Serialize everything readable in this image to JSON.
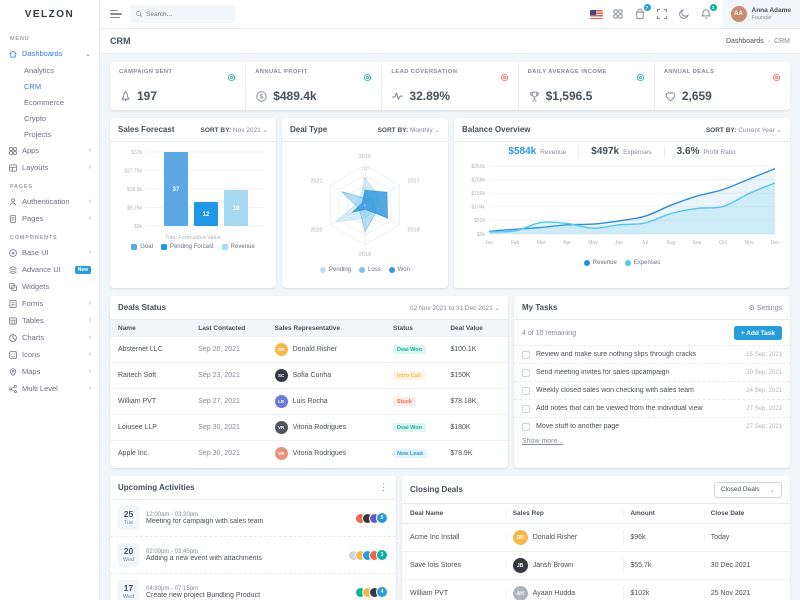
{
  "brand": {
    "logo_text": "VELZON"
  },
  "topbar": {
    "search_placeholder": "Search...",
    "cart_badge": "7",
    "bell_badge": "3",
    "user": {
      "name": "Anna Adame",
      "role": "Founder",
      "initials": "AA"
    }
  },
  "page": {
    "title": "CRM",
    "breadcrumb": [
      "Dashboards",
      "CRM"
    ]
  },
  "sidebar": {
    "sections": [
      {
        "label": "MENU",
        "items": [
          {
            "label": "Dashboards",
            "icon": "dashboard-icon",
            "active": true,
            "chevron": "down"
          },
          {
            "label": "Analytics",
            "sub": true
          },
          {
            "label": "CRM",
            "sub": true,
            "active": true
          },
          {
            "label": "Ecommerce",
            "sub": true
          },
          {
            "label": "Crypto",
            "sub": true
          },
          {
            "label": "Projects",
            "sub": true
          },
          {
            "label": "Apps",
            "icon": "apps-icon",
            "chevron": "right"
          },
          {
            "label": "Layouts",
            "icon": "layouts-icon",
            "chevron": "right"
          }
        ]
      },
      {
        "label": "PAGES",
        "items": [
          {
            "label": "Authentication",
            "icon": "user-icon",
            "chevron": "right"
          },
          {
            "label": "Pages",
            "icon": "pages-icon",
            "chevron": "right"
          }
        ]
      },
      {
        "label": "COMPONENTS",
        "items": [
          {
            "label": "Base UI",
            "icon": "base-ui-icon",
            "chevron": "right"
          },
          {
            "label": "Advance UI",
            "icon": "advance-ui-icon",
            "badge": "New"
          },
          {
            "label": "Widgets",
            "icon": "widgets-icon"
          },
          {
            "label": "Forms",
            "icon": "forms-icon",
            "chevron": "right"
          },
          {
            "label": "Tables",
            "icon": "tables-icon",
            "chevron": "right"
          },
          {
            "label": "Charts",
            "icon": "charts-icon",
            "chevron": "right"
          },
          {
            "label": "Icons",
            "icon": "icons-icon",
            "chevron": "right"
          },
          {
            "label": "Maps",
            "icon": "maps-icon",
            "chevron": "right"
          },
          {
            "label": "Multi Level",
            "icon": "multi-level-icon",
            "chevron": "right"
          }
        ]
      }
    ]
  },
  "kpis": [
    {
      "label": "CAMPAIGN SENT",
      "value": "197",
      "icon": "rocket-icon",
      "trend_color": "#0ab39c"
    },
    {
      "label": "ANNUAL PROFIT",
      "value": "$489.4k",
      "icon": "dollar-circle-icon",
      "trend_color": "#0ab39c"
    },
    {
      "label": "LEAD COVERSATION",
      "value": "32.89%",
      "icon": "pulse-icon",
      "trend_color": "#f06548"
    },
    {
      "label": "DAILY AVERAGE INCOME",
      "value": "$1,596.5",
      "icon": "trophy-icon",
      "trend_color": "#0ab39c"
    },
    {
      "label": "ANNUAL DEALS",
      "value": "2,659",
      "icon": "deals-icon",
      "trend_color": "#f06548"
    }
  ],
  "sales_forecast": {
    "title": "Sales Forecast",
    "sort_label": "SORT BY:",
    "sort_value": "Nov 2021",
    "chart": {
      "type": "bar",
      "categories": [
        "Goal",
        "Pending Forcast",
        "Revenue"
      ],
      "values": [
        37,
        12,
        18
      ],
      "bar_labels": [
        "37",
        "12",
        "18"
      ],
      "colors": [
        "#5ca8e3",
        "#1f97e6",
        "#a9d8f3"
      ],
      "yticks": [
        0,
        9.25,
        18.5,
        27.75,
        37
      ],
      "ytick_labels": [
        "$0k",
        "$9.25k",
        "$18.5k",
        "$27.75k",
        "$37k"
      ],
      "ylim": [
        0,
        37
      ],
      "xlabel": "Total Forecasted Value",
      "legend": [
        "Goal",
        "Pending Forcast",
        "Revenue"
      ]
    }
  },
  "deal_type": {
    "title": "Deal Type",
    "sort_label": "SORT BY:",
    "sort_value": "Monthly",
    "chart": {
      "type": "radar",
      "categories": [
        "2016",
        "2017",
        "2018",
        "2019",
        "2020",
        "2021"
      ],
      "rmax": 120,
      "rticks": [
        0,
        60,
        90,
        120
      ],
      "series": [
        {
          "name": "Pending",
          "color": "#b9dff5",
          "opacity": 0.55,
          "values": [
            80,
            50,
            30,
            40,
            100,
            20
          ]
        },
        {
          "name": "Loss",
          "color": "#7cc4ee",
          "opacity": 0.55,
          "values": [
            20,
            30,
            40,
            80,
            20,
            80
          ]
        },
        {
          "name": "Won",
          "color": "#3599dc",
          "opacity": 0.85,
          "values": [
            44,
            76,
            78,
            13,
            43,
            10
          ]
        }
      ]
    }
  },
  "balance_overview": {
    "title": "Balance Overview",
    "sort_label": "SORT BY:",
    "sort_value": "Current Year",
    "stats": [
      {
        "value": "$584k",
        "label": "Revenue",
        "color": "#2c9ae3"
      },
      {
        "value": "$497k",
        "label": "Expenses",
        "color": "#495057"
      },
      {
        "value": "3.6%",
        "label": "Profit Ratio",
        "color": "#495057"
      }
    ],
    "chart": {
      "type": "area",
      "x": [
        "Jan",
        "Feb",
        "Mar",
        "Apr",
        "May",
        "Jun",
        "Jul",
        "Aug",
        "Sep",
        "Oct",
        "Nov",
        "Dec"
      ],
      "yticks": [
        0,
        52,
        104,
        156,
        208,
        260
      ],
      "ytick_labels": [
        "$0k",
        "$52k",
        "$104k",
        "$156k",
        "$208k",
        "$260k"
      ],
      "ylim": [
        0,
        260
      ],
      "series": [
        {
          "name": "Revenue",
          "color": "#2c8fd8",
          "fill": "rgba(44,143,216,0.10)",
          "values": [
            10,
            18,
            25,
            35,
            38,
            50,
            68,
            110,
            145,
            170,
            210,
            250
          ]
        },
        {
          "name": "Expenses",
          "color": "#55c6ee",
          "fill": "rgba(84,198,238,0.18)",
          "values": [
            8,
            12,
            44,
            40,
            22,
            35,
            42,
            78,
            98,
            105,
            155,
            195
          ]
        }
      ]
    }
  },
  "deals_status": {
    "title": "Deals Status",
    "date_range": "02 Nov 2021 to 31 Dec 2021",
    "columns": [
      "Name",
      "Last Contacted",
      "Sales Representative",
      "Status",
      "Deal Value"
    ],
    "rows": [
      {
        "name": "Absternet LLC",
        "last_contacted": "Sep 20, 2021",
        "rep": "Donald Risher",
        "rep_initials": "DR",
        "rep_bg": "#f7b84b",
        "status": "Deal Won",
        "status_type": "success",
        "value": "$100.1K"
      },
      {
        "name": "Raitech Soft",
        "last_contacted": "Sep 23, 2021",
        "rep": "Sofia Cunha",
        "rep_initials": "SC",
        "rep_bg": "#343a40",
        "status": "Intro Call",
        "status_type": "warning",
        "value": "$150K"
      },
      {
        "name": "William PVT",
        "last_contacted": "Sep 27, 2021",
        "rep": "Luis Rocha",
        "rep_initials": "LR",
        "rep_bg": "#6c7bd8",
        "status": "Stuck",
        "status_type": "danger",
        "value": "$78.18K"
      },
      {
        "name": "Loiusee LLP",
        "last_contacted": "Sep 30, 2021",
        "rep": "Vitoria Rodrigues",
        "rep_initials": "VR",
        "rep_bg": "#50565e",
        "status": "Deal Won",
        "status_type": "success",
        "value": "$180K"
      },
      {
        "name": "Apple Inc.",
        "last_contacted": "Sep 30, 2021",
        "rep": "Vitoria Rodrigues",
        "rep_initials": "VR",
        "rep_bg": "#e8927c",
        "status": "New Lead",
        "status_type": "info",
        "value": "$78.9K"
      }
    ]
  },
  "my_tasks": {
    "title": "My Tasks",
    "settings_label": "Settings",
    "remaining": "4 of 10 remaining",
    "add_task_label": "+ Add Task",
    "show_more": "Show more...",
    "tasks": [
      {
        "text": "Review and make sure nothing slips through cracks",
        "date": "15 Sep, 2021"
      },
      {
        "text": "Send meeting invites for sales upcampaign",
        "date": "20 Sep, 2021"
      },
      {
        "text": "Weekly closed sales won checking with sales team",
        "date": "24 Sep, 2021"
      },
      {
        "text": "Add notes that can be viewed from the individual view",
        "date": "27 Sep, 2021"
      },
      {
        "text": "Move stuff to another page",
        "date": "27 Sep, 2021"
      }
    ]
  },
  "upcoming_activities": {
    "title": "Upcoming Activities",
    "items": [
      {
        "day": "25",
        "weekday": "Tue",
        "time": "12:00am - 03:30pm",
        "text": "Meeting for campaign with sales team",
        "avatars": [
          "#f06548",
          "#343a40",
          "#6559cc"
        ],
        "extra": "5",
        "extra_bg": "#299cdb"
      },
      {
        "day": "20",
        "weekday": "Wed",
        "time": "02:00pm - 03:45pm",
        "text": "Adding a new event with attachments",
        "avatars": [
          "#ced4da",
          "#f7b84b",
          "#299cdb",
          "#f06548"
        ],
        "extra": "3",
        "extra_bg": "#0ab39c"
      },
      {
        "day": "17",
        "weekday": "Wed",
        "time": "04:30pm - 07:15pm",
        "text": "Create new project Bundling Product",
        "avatars": [
          "#0ab39c",
          "#f7b84b",
          "#343a40"
        ],
        "extra": "4",
        "extra_bg": "#299cdb"
      }
    ]
  },
  "closing_deals": {
    "title": "Closing Deals",
    "filter_value": "Closed Deals",
    "columns": [
      "Deal Name",
      "Sales Rep",
      "Amount",
      "Close Date"
    ],
    "rows": [
      {
        "deal": "Acme Inc Install",
        "rep": "Donald Risher",
        "rep_initials": "DR",
        "rep_bg": "#f7b84b",
        "amount": "$96k",
        "date": "Today"
      },
      {
        "deal": "Save lots Stores",
        "rep": "Jansh Brown",
        "rep_initials": "JB",
        "rep_bg": "#343a40",
        "amount": "$55.7k",
        "date": "30 Dec 2021"
      },
      {
        "deal": "William PVT",
        "rep": "Ayaan Hudda",
        "rep_initials": "AH",
        "rep_bg": "#adb5bd",
        "amount": "$102k",
        "date": "25 Nov 2021"
      }
    ]
  }
}
